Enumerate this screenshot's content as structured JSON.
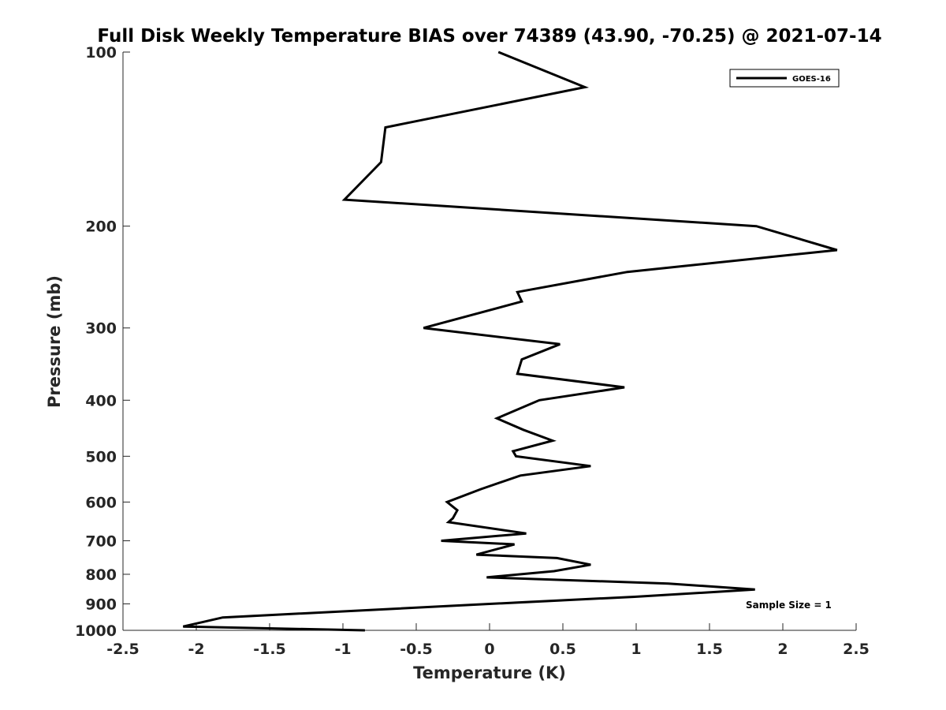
{
  "chart_data": {
    "type": "line",
    "title": "Full Disk Weekly Temperature BIAS over 74389 (43.90, -70.25) @ 2021-07-14",
    "xlabel": "Temperature (K)",
    "ylabel": "Pressure (mb)",
    "xlim": [
      -2.5,
      2.5
    ],
    "ylim": [
      100,
      1000
    ],
    "y_scale": "log",
    "y_reversed": true,
    "x_ticks": [
      -2.5,
      -2,
      -1.5,
      -1,
      -0.5,
      0,
      0.5,
      1,
      1.5,
      2,
      2.5
    ],
    "x_tick_labels": [
      "-2.5",
      "-2",
      "-1.5",
      "-1",
      "-0.5",
      "0",
      "0.5",
      "1",
      "1.5",
      "2",
      "2.5"
    ],
    "y_ticks": [
      100,
      200,
      300,
      400,
      500,
      600,
      700,
      800,
      900,
      1000
    ],
    "y_tick_labels": [
      "100",
      "200",
      "300",
      "400",
      "500",
      "600",
      "700",
      "800",
      "900",
      "1000"
    ],
    "grid": false,
    "legend_position": "top-right",
    "series": [
      {
        "name": "GOES-16",
        "color": "#000000",
        "x": [
          0.06,
          0.65,
          -0.71,
          -0.74,
          -0.99,
          1.82,
          2.37,
          0.94,
          0.19,
          0.22,
          -0.45,
          0.48,
          0.22,
          0.19,
          0.92,
          0.34,
          0.05,
          0.23,
          0.43,
          0.16,
          0.18,
          0.69,
          0.21,
          -0.06,
          -0.29,
          -0.22,
          -0.25,
          -0.28,
          0.25,
          -0.33,
          0.17,
          -0.09,
          0.46,
          0.69,
          0.44,
          -0.02,
          1.22,
          1.81,
          0.99,
          0.0,
          -1.82,
          -2.09,
          -0.85
        ],
        "y": [
          100,
          115,
          135,
          155,
          180,
          200,
          220,
          240,
          260,
          270,
          300,
          320,
          340,
          360,
          380,
          400,
          430,
          450,
          470,
          490,
          500,
          520,
          540,
          570,
          600,
          620,
          640,
          650,
          680,
          700,
          710,
          740,
          750,
          770,
          790,
          810,
          830,
          850,
          875,
          900,
          950,
          985,
          1000
        ]
      }
    ],
    "annotations": [
      "Sample Size = 1"
    ]
  }
}
